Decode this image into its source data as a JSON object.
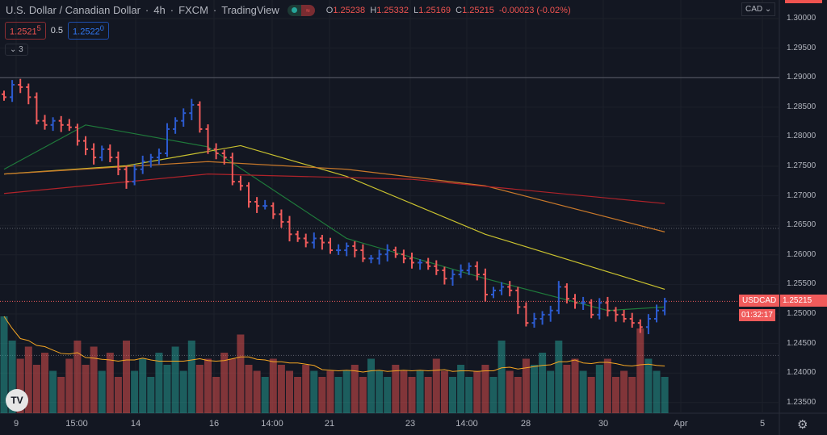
{
  "header": {
    "symbol": "U.S. Dollar / Canadian Dollar",
    "interval": "4h",
    "exchange": "FXCM",
    "source": "TradingView",
    "open_label": "O",
    "open": "1.25238",
    "high_label": "H",
    "high": "1.25332",
    "low_label": "L",
    "low": "1.25169",
    "close_label": "C",
    "close": "1.25215",
    "change": "-0.00023 (-0.02%)"
  },
  "quote": {
    "sell": "1.2521",
    "sell_sup": "5",
    "spread": "0.5",
    "buy": "1.2522",
    "buy_sup": "0",
    "collapse": "3"
  },
  "currency": "CAD",
  "price_tag": {
    "symbol": "USDCAD",
    "price": "1.25215",
    "countdown": "01:32:17"
  },
  "colors": {
    "up": "#2c5bd0",
    "down": "#f05b5b",
    "vol_up": "#26a69a",
    "vol_down": "#ef5350",
    "ma_fast": "#1f7a3b",
    "ma_mid": "#c9c12f",
    "ma_slow": "#c8782a",
    "ma_long": "#b0232a",
    "vol_ma": "#f5a623",
    "bg": "#131722"
  },
  "chart_data": {
    "type": "ohlc",
    "ylim": [
      1.235,
      1.3
    ],
    "y_ticks": [
      "1.30000",
      "1.29500",
      "1.29000",
      "1.28500",
      "1.28000",
      "1.27500",
      "1.27000",
      "1.26500",
      "1.26000",
      "1.25500",
      "1.25000",
      "1.24500",
      "1.24000",
      "1.23500"
    ],
    "x_ticks": [
      "9",
      "15:00",
      "14",
      "16",
      "14:00",
      "21",
      "23",
      "14:00",
      "28",
      "30",
      "Apr",
      "5"
    ],
    "closes": [
      1.2867,
      1.2888,
      1.2884,
      1.2867,
      1.2827,
      1.282,
      1.2827,
      1.282,
      1.2816,
      1.2793,
      1.2779,
      1.2765,
      1.2779,
      1.2765,
      1.2745,
      1.2724,
      1.2745,
      1.2758,
      1.2765,
      1.2772,
      1.2813,
      1.2827,
      1.284,
      1.2854,
      1.2813,
      1.2779,
      1.2772,
      1.2765,
      1.2724,
      1.2717,
      1.269,
      1.2683,
      1.2683,
      1.2669,
      1.2656,
      1.2635,
      1.2628,
      1.2621,
      1.2628,
      1.2621,
      1.2608,
      1.2608,
      1.2615,
      1.2608,
      1.2594,
      1.2594,
      1.2601,
      1.2608,
      1.2601,
      1.2594,
      1.2587,
      1.2587,
      1.2581,
      1.2574,
      1.256,
      1.2567,
      1.2574,
      1.2581,
      1.2567,
      1.2533,
      1.254,
      1.2546,
      1.254,
      1.2512,
      1.2485,
      1.2492,
      1.2499,
      1.2506,
      1.2546,
      1.2526,
      1.2519,
      1.2519,
      1.2499,
      1.2519,
      1.2506,
      1.2499,
      1.2492,
      1.2485,
      1.2478,
      1.2492,
      1.2506,
      1.25215
    ],
    "volume": [
      80,
      60,
      45,
      55,
      40,
      50,
      35,
      30,
      45,
      60,
      40,
      55,
      35,
      50,
      30,
      60,
      35,
      45,
      30,
      50,
      40,
      55,
      35,
      60,
      40,
      45,
      30,
      50,
      45,
      65,
      40,
      35,
      30,
      45,
      40,
      35,
      30,
      40,
      35,
      30,
      35,
      30,
      35,
      40,
      30,
      45,
      35,
      30,
      40,
      35,
      30,
      35,
      30,
      45,
      35,
      30,
      40,
      30,
      35,
      40,
      30,
      60,
      35,
      30,
      45,
      40,
      50,
      35,
      60,
      40,
      45,
      35,
      30,
      40,
      45,
      30,
      35,
      30,
      70,
      45,
      35,
      30
    ],
    "moving_averages": [
      {
        "color_key": "ma_fast",
        "points": [
          [
            0,
            1.2745
          ],
          [
            10,
            1.282
          ],
          [
            25,
            1.2783
          ],
          [
            42,
            1.2628
          ],
          [
            59,
            1.256
          ],
          [
            74,
            1.2506
          ],
          [
            81,
            1.2512
          ]
        ]
      },
      {
        "color_key": "ma_mid",
        "points": [
          [
            0,
            1.2737
          ],
          [
            15,
            1.2751
          ],
          [
            29,
            1.2785
          ],
          [
            42,
            1.2733
          ],
          [
            59,
            1.2635
          ],
          [
            81,
            1.2542
          ]
        ]
      },
      {
        "color_key": "ma_slow",
        "points": [
          [
            0,
            1.2737
          ],
          [
            25,
            1.2758
          ],
          [
            42,
            1.2745
          ],
          [
            59,
            1.2717
          ],
          [
            81,
            1.2639
          ]
        ]
      },
      {
        "color_key": "ma_long",
        "points": [
          [
            0,
            1.2704
          ],
          [
            25,
            1.2737
          ],
          [
            50,
            1.2728
          ],
          [
            81,
            1.2687
          ]
        ]
      }
    ],
    "horizontal_lines": [
      1.29,
      1.2645,
      1.25215,
      1.243
    ]
  }
}
